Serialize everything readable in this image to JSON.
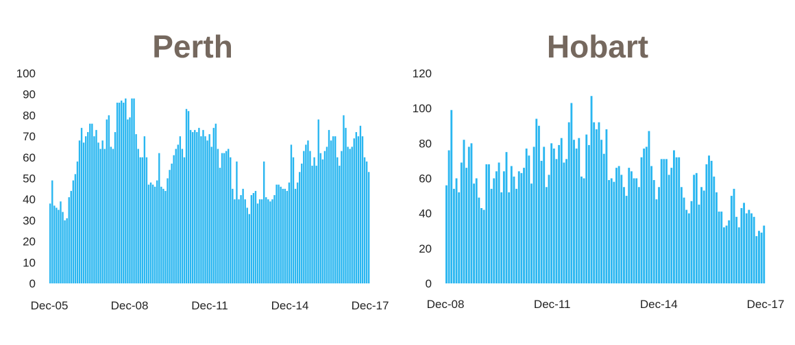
{
  "chart_data": [
    {
      "type": "bar",
      "title": "Perth",
      "xlabel": "",
      "ylabel": "",
      "ylim": [
        0,
        100
      ],
      "yticks": [
        0,
        10,
        20,
        30,
        40,
        50,
        60,
        70,
        80,
        90,
        100
      ],
      "x_tick_labels": [
        "Dec-05",
        "Dec-08",
        "Dec-11",
        "Dec-14",
        "Dec-17"
      ],
      "x_range": [
        "Dec-05",
        "Dec-17"
      ],
      "bar_color": "#29b6f0",
      "values": [
        38,
        49,
        37,
        36,
        35,
        39,
        34,
        30,
        31,
        41,
        44,
        49,
        52,
        58,
        68,
        74,
        67,
        70,
        72,
        76,
        76,
        70,
        73,
        67,
        64,
        68,
        64,
        78,
        80,
        65,
        64,
        72,
        86,
        86,
        87,
        86,
        88,
        78,
        79,
        88,
        88,
        71,
        64,
        60,
        60,
        70,
        60,
        47,
        48,
        47,
        46,
        49,
        62,
        46,
        45,
        44,
        50,
        54,
        57,
        61,
        64,
        66,
        70,
        64,
        60,
        83,
        82,
        73,
        72,
        73,
        72,
        74,
        70,
        73,
        70,
        68,
        71,
        65,
        74,
        76,
        64,
        55,
        62,
        62,
        63,
        64,
        60,
        45,
        40,
        58,
        40,
        42,
        45,
        40,
        36,
        33,
        42,
        43,
        44,
        38,
        40,
        40,
        58,
        41,
        40,
        39,
        40,
        42,
        47,
        47,
        46,
        45,
        45,
        44,
        48,
        66,
        60,
        45,
        48,
        53,
        57,
        63,
        66,
        68,
        63,
        56,
        60,
        56,
        78,
        62,
        59,
        63,
        65,
        73,
        68,
        70,
        70,
        60,
        56,
        63,
        80,
        74,
        65,
        64,
        65,
        69,
        72,
        70,
        75,
        70,
        60,
        58,
        53
      ]
    },
    {
      "type": "bar",
      "title": "Hobart",
      "xlabel": "",
      "ylabel": "",
      "ylim": [
        0,
        120
      ],
      "yticks": [
        0,
        20,
        40,
        60,
        80,
        100,
        120
      ],
      "x_tick_labels": [
        "Dec-08",
        "Dec-11",
        "Dec-14",
        "Dec-17"
      ],
      "x_range": [
        "Dec-08",
        "Dec-17"
      ],
      "bar_color": "#29b6f0",
      "values": [
        56,
        76,
        99,
        54,
        60,
        52,
        69,
        82,
        66,
        78,
        80,
        57,
        60,
        49,
        43,
        42,
        68,
        68,
        54,
        60,
        64,
        69,
        52,
        64,
        75,
        52,
        67,
        61,
        54,
        64,
        63,
        66,
        77,
        73,
        57,
        78,
        94,
        90,
        70,
        78,
        55,
        62,
        80,
        77,
        71,
        79,
        83,
        69,
        71,
        92,
        103,
        82,
        77,
        83,
        61,
        60,
        85,
        79,
        107,
        92,
        88,
        92,
        82,
        74,
        88,
        59,
        60,
        58,
        66,
        67,
        62,
        55,
        50,
        66,
        64,
        60,
        60,
        55,
        72,
        77,
        78,
        87,
        67,
        59,
        48,
        55,
        71,
        71,
        71,
        62,
        66,
        76,
        72,
        72,
        55,
        49,
        42,
        40,
        47,
        62,
        63,
        45,
        55,
        53,
        68,
        73,
        70,
        61,
        52,
        41,
        41,
        32,
        33,
        36,
        50,
        54,
        38,
        32,
        43,
        46,
        40,
        42,
        40,
        38,
        27,
        30,
        29,
        33
      ]
    }
  ]
}
